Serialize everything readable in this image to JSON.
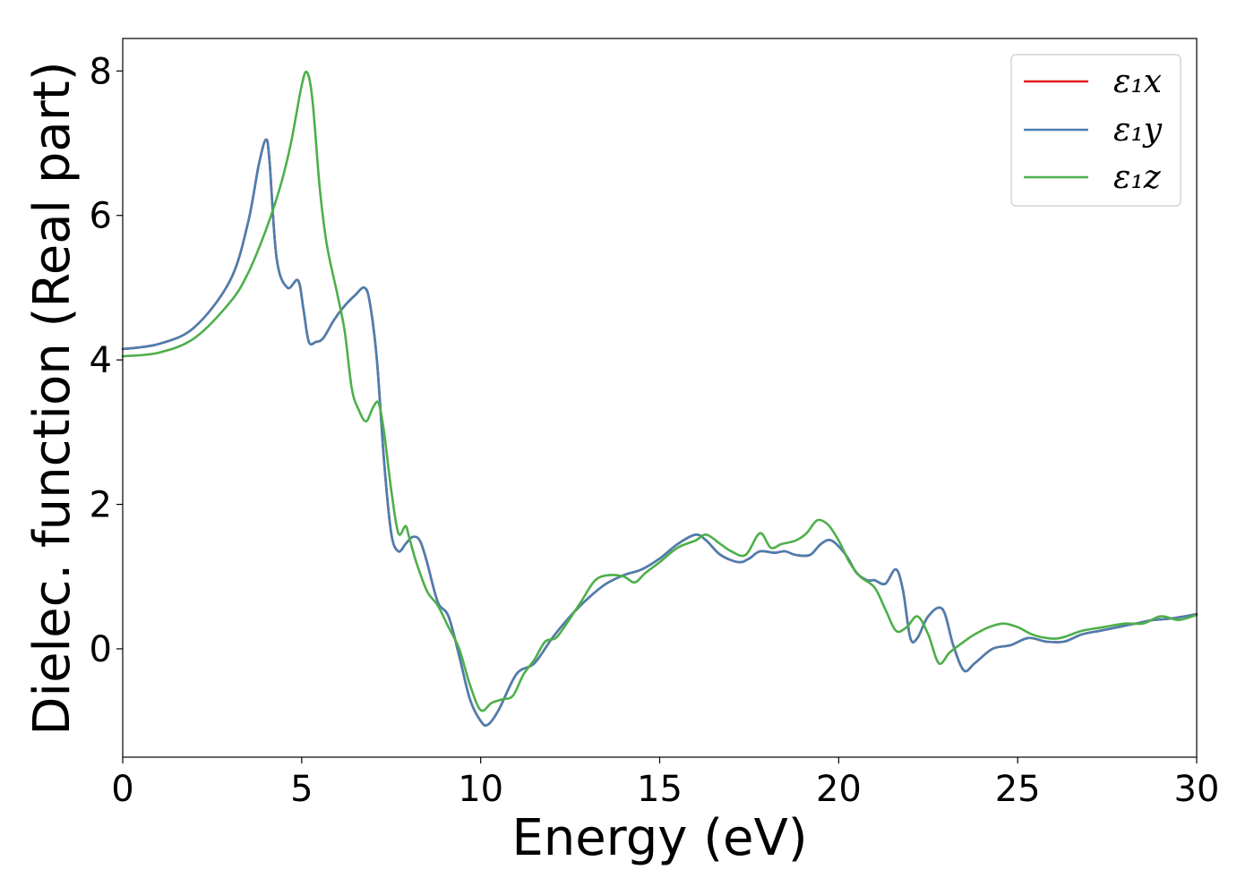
{
  "chart_data": {
    "type": "line",
    "xlabel": "Energy (eV)",
    "ylabel": "Dielec. function (Real part)",
    "xlim": [
      0,
      30
    ],
    "ylim": [
      -1.5,
      8.45
    ],
    "xticks": [
      0,
      5,
      10,
      15,
      20,
      25,
      30
    ],
    "yticks": [
      0,
      2,
      4,
      6,
      8
    ],
    "grid": false,
    "legend_position": "top-right",
    "series": [
      {
        "name": "ε₁x",
        "color": "#e41a1c",
        "x": [
          0,
          1,
          2,
          3,
          3.5,
          3.8,
          4.0,
          4.1,
          4.3,
          4.6,
          4.9,
          5.05,
          5.2,
          5.4,
          5.6,
          5.9,
          6.2,
          6.5,
          6.75,
          6.9,
          7.1,
          7.3,
          7.5,
          7.7,
          7.9,
          8.1,
          8.3,
          8.5,
          8.8,
          9.1,
          9.4,
          9.7,
          10.0,
          10.2,
          10.5,
          11.0,
          11.5,
          12.0,
          12.5,
          13.0,
          13.5,
          14.0,
          14.5,
          15.0,
          15.5,
          16.0,
          16.3,
          16.7,
          17.2,
          17.5,
          17.8,
          18.2,
          18.5,
          18.8,
          19.2,
          19.5,
          19.8,
          20.2,
          20.5,
          20.8,
          21.0,
          21.3,
          21.6,
          21.8,
          22.0,
          22.2,
          22.5,
          22.9,
          23.2,
          23.5,
          23.8,
          24.3,
          24.8,
          25.3,
          25.8,
          26.3,
          26.8,
          27.3,
          27.8,
          28.3,
          28.8,
          29.3,
          30.0
        ],
        "values": [
          4.15,
          4.22,
          4.45,
          5.1,
          5.9,
          6.7,
          7.05,
          6.75,
          5.4,
          5.0,
          5.1,
          4.7,
          4.25,
          4.25,
          4.3,
          4.55,
          4.75,
          4.9,
          5.0,
          4.8,
          4.0,
          2.6,
          1.6,
          1.35,
          1.45,
          1.55,
          1.5,
          1.2,
          0.65,
          0.45,
          -0.1,
          -0.7,
          -1.0,
          -1.05,
          -0.85,
          -0.35,
          -0.2,
          0.15,
          0.45,
          0.7,
          0.9,
          1.02,
          1.1,
          1.25,
          1.45,
          1.58,
          1.5,
          1.3,
          1.2,
          1.25,
          1.35,
          1.33,
          1.35,
          1.3,
          1.3,
          1.45,
          1.5,
          1.3,
          1.05,
          0.95,
          0.95,
          0.9,
          1.1,
          0.8,
          0.15,
          0.15,
          0.45,
          0.55,
          0.05,
          -0.3,
          -0.2,
          0.0,
          0.05,
          0.15,
          0.1,
          0.1,
          0.2,
          0.25,
          0.3,
          0.35,
          0.4,
          0.42,
          0.48
        ]
      },
      {
        "name": "ε₁y",
        "color": "#4a7fb0",
        "x": [
          0,
          1,
          2,
          3,
          3.5,
          3.8,
          4.0,
          4.1,
          4.3,
          4.6,
          4.9,
          5.05,
          5.2,
          5.4,
          5.6,
          5.9,
          6.2,
          6.5,
          6.75,
          6.9,
          7.1,
          7.3,
          7.5,
          7.7,
          7.9,
          8.1,
          8.3,
          8.5,
          8.8,
          9.1,
          9.4,
          9.7,
          10.0,
          10.2,
          10.5,
          11.0,
          11.5,
          12.0,
          12.5,
          13.0,
          13.5,
          14.0,
          14.5,
          15.0,
          15.5,
          16.0,
          16.3,
          16.7,
          17.2,
          17.5,
          17.8,
          18.2,
          18.5,
          18.8,
          19.2,
          19.5,
          19.8,
          20.2,
          20.5,
          20.8,
          21.0,
          21.3,
          21.6,
          21.8,
          22.0,
          22.2,
          22.5,
          22.9,
          23.2,
          23.5,
          23.8,
          24.3,
          24.8,
          25.3,
          25.8,
          26.3,
          26.8,
          27.3,
          27.8,
          28.3,
          28.8,
          29.3,
          30.0
        ],
        "values": [
          4.15,
          4.22,
          4.45,
          5.1,
          5.9,
          6.7,
          7.05,
          6.75,
          5.4,
          5.0,
          5.1,
          4.7,
          4.25,
          4.25,
          4.3,
          4.55,
          4.75,
          4.9,
          5.0,
          4.8,
          4.0,
          2.6,
          1.6,
          1.35,
          1.45,
          1.55,
          1.5,
          1.2,
          0.65,
          0.45,
          -0.1,
          -0.7,
          -1.0,
          -1.05,
          -0.85,
          -0.35,
          -0.2,
          0.15,
          0.45,
          0.7,
          0.9,
          1.02,
          1.1,
          1.25,
          1.45,
          1.58,
          1.5,
          1.3,
          1.2,
          1.25,
          1.35,
          1.33,
          1.35,
          1.3,
          1.3,
          1.45,
          1.5,
          1.3,
          1.05,
          0.95,
          0.95,
          0.9,
          1.1,
          0.8,
          0.15,
          0.15,
          0.45,
          0.55,
          0.05,
          -0.3,
          -0.2,
          0.0,
          0.05,
          0.15,
          0.1,
          0.1,
          0.2,
          0.25,
          0.3,
          0.35,
          0.4,
          0.42,
          0.48
        ]
      },
      {
        "name": "ε₁z",
        "color": "#4daf4a",
        "x": [
          0,
          1,
          2,
          3,
          3.5,
          4.0,
          4.4,
          4.7,
          5.0,
          5.15,
          5.3,
          5.5,
          5.7,
          6.0,
          6.2,
          6.4,
          6.6,
          6.8,
          7.0,
          7.15,
          7.3,
          7.5,
          7.7,
          7.9,
          8.0,
          8.2,
          8.5,
          8.8,
          9.1,
          9.4,
          9.7,
          10.0,
          10.3,
          10.6,
          10.9,
          11.2,
          11.5,
          11.8,
          12.1,
          12.4,
          12.8,
          13.2,
          13.6,
          14.0,
          14.3,
          14.6,
          15.0,
          15.5,
          16.0,
          16.3,
          16.7,
          17.0,
          17.4,
          17.8,
          18.1,
          18.4,
          18.8,
          19.1,
          19.4,
          19.7,
          20.0,
          20.3,
          20.6,
          21.0,
          21.3,
          21.6,
          21.9,
          22.2,
          22.5,
          22.8,
          23.1,
          23.5,
          23.8,
          24.2,
          24.6,
          25.0,
          25.4,
          25.8,
          26.2,
          26.8,
          27.4,
          28.0,
          28.5,
          29.0,
          29.5,
          30.0
        ],
        "values": [
          4.05,
          4.1,
          4.3,
          4.8,
          5.2,
          5.8,
          6.4,
          7.0,
          7.8,
          7.98,
          7.6,
          6.4,
          5.6,
          4.9,
          4.4,
          3.6,
          3.3,
          3.15,
          3.35,
          3.4,
          3.0,
          2.2,
          1.6,
          1.7,
          1.55,
          1.2,
          0.8,
          0.6,
          0.3,
          0.0,
          -0.5,
          -0.85,
          -0.75,
          -0.7,
          -0.65,
          -0.35,
          -0.15,
          0.1,
          0.15,
          0.35,
          0.65,
          0.95,
          1.02,
          1.0,
          0.92,
          1.05,
          1.2,
          1.4,
          1.5,
          1.58,
          1.45,
          1.35,
          1.3,
          1.6,
          1.4,
          1.45,
          1.5,
          1.6,
          1.78,
          1.72,
          1.5,
          1.2,
          1.0,
          0.85,
          0.55,
          0.25,
          0.3,
          0.45,
          0.2,
          -0.2,
          -0.05,
          0.1,
          0.2,
          0.3,
          0.35,
          0.3,
          0.2,
          0.15,
          0.15,
          0.25,
          0.3,
          0.35,
          0.35,
          0.45,
          0.4,
          0.47
        ]
      }
    ]
  }
}
